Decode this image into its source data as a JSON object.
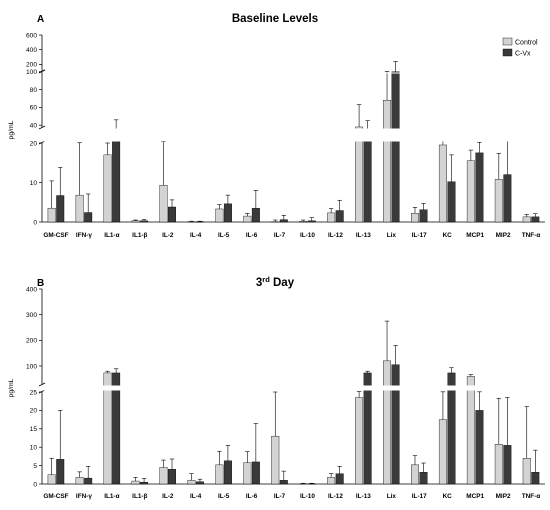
{
  "colors": {
    "control": "#d3d3d3",
    "cvx": "#3a3a3a",
    "axis": "#000000"
  },
  "legend": {
    "control_label": "Control",
    "cvx_label": "C-Vx"
  },
  "chart_data": [
    {
      "panel": "A",
      "title": "Baseline Levels",
      "type": "bar",
      "ylabel": "pg/mL",
      "scale": "broken",
      "categories": [
        "GM-CSF",
        "IFN-γ",
        "IL1-α",
        "IL1-β",
        "IL-2",
        "IL-4",
        "IL-5",
        "IL-6",
        "IL-7",
        "IL-10",
        "IL-12",
        "IL-13",
        "Lix",
        "IL-17",
        "KC",
        "MCP1",
        "MIP2",
        "TNF-α"
      ],
      "series": [
        {
          "name": "Control",
          "values": [
            3.5,
            6.8,
            17,
            0.3,
            9.3,
            0.1,
            3.3,
            1.5,
            0.1,
            0.2,
            2.3,
            38,
            68,
            2.2,
            19.5,
            15.5,
            10.8,
            1.3
          ],
          "error": [
            6.9,
            13.5,
            3,
            0.2,
            12.2,
            0.1,
            1.1,
            0.7,
            0.4,
            0.3,
            1.1,
            25,
            37,
            1.5,
            4,
            2.7,
            6.6,
            0.6
          ]
        },
        {
          "name": "C-Vx",
          "values": [
            6.7,
            2.4,
            31,
            0.3,
            3.8,
            0.1,
            4.6,
            3.5,
            0.6,
            0.3,
            2.9,
            31,
            100,
            3.1,
            10.2,
            17.5,
            12,
            1.3
          ],
          "error": [
            7.1,
            4.7,
            15,
            0.3,
            1.8,
            0.1,
            2.2,
            4.5,
            1.1,
            0.8,
            2.6,
            14,
            140,
            1.6,
            6.8,
            3.3,
            11,
            0.8
          ]
        }
      ],
      "yticks": [
        0,
        10,
        20,
        40,
        60,
        80,
        100,
        200,
        400,
        600
      ],
      "ylim": [
        0,
        600
      ]
    },
    {
      "panel": "B",
      "title": "3rd Day",
      "title_sup": "rd",
      "title_prefix": "3",
      "title_suffix": " Day",
      "type": "bar",
      "ylabel": "pg/mL",
      "scale": "broken",
      "categories": [
        "GM-CSF",
        "IFN-γ",
        "IL1-α",
        "IL1-β",
        "IL-2",
        "IL-4",
        "IL-5",
        "IL-6",
        "IL-7",
        "IL-10",
        "IL-12",
        "IL-13",
        "Lix",
        "IL-17",
        "KC",
        "MCP1",
        "MIP2",
        "TNF-α"
      ],
      "series": [
        {
          "name": "Control",
          "values": [
            2.5,
            1.8,
            80,
            0.8,
            4.5,
            1,
            5.2,
            5.8,
            13,
            0.1,
            1.8,
            23.5,
            120,
            5.2,
            17.5,
            70,
            10.8,
            7
          ],
          "error": [
            4.5,
            1.5,
            5,
            1,
            2,
            1.8,
            3.7,
            3,
            12,
            0.1,
            1,
            3,
            155,
            2.5,
            8,
            5,
            12.5,
            14
          ]
        },
        {
          "name": "C-Vx",
          "values": [
            6.7,
            1.6,
            80,
            0.5,
            4,
            0.6,
            6.3,
            6,
            1,
            0.1,
            2.8,
            80,
            105,
            3.2,
            80,
            20,
            10.5,
            3.2
          ],
          "error": [
            13.3,
            3.2,
            12,
            1,
            2.8,
            0.7,
            4.2,
            10.4,
            2.5,
            0.1,
            2,
            5,
            75,
            2.5,
            15,
            5.5,
            13,
            6
          ]
        }
      ],
      "yticks": [
        0,
        5,
        10,
        15,
        20,
        25,
        100,
        200,
        300,
        400
      ],
      "ylim": [
        0,
        400
      ]
    }
  ]
}
